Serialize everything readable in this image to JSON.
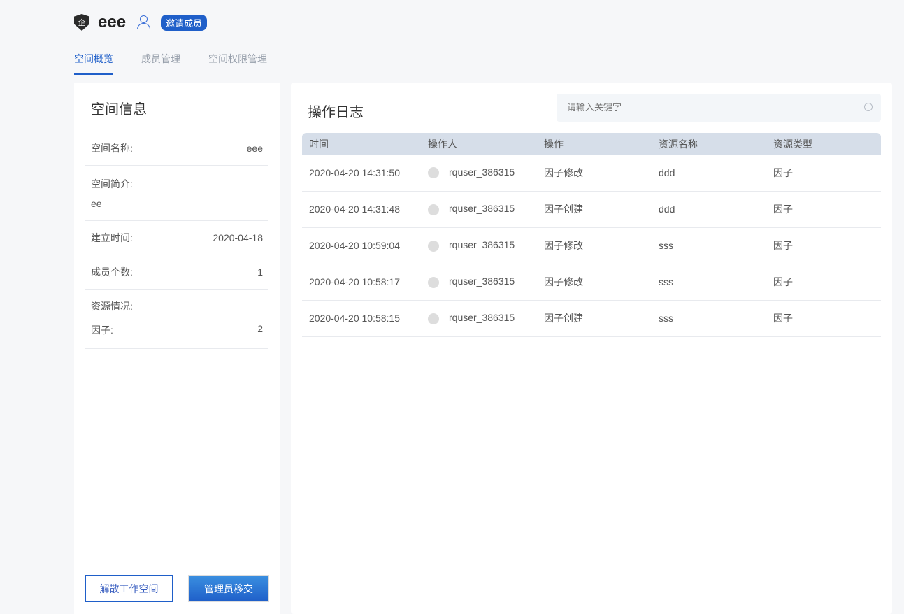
{
  "header": {
    "badge": "企",
    "title": "eee",
    "invite": "邀请成员"
  },
  "tabs": [
    "空间概览",
    "成员管理",
    "空间权限管理"
  ],
  "info": {
    "title": "空间信息",
    "name_label": "空间名称:",
    "name": "eee",
    "desc_label": "空间简介:",
    "desc": "ee",
    "created_label": "建立时间:",
    "created": "2020-04-18",
    "members_label": "成员个数:",
    "members": "1",
    "resources_label": "资源情况:",
    "factor_label": "因子:",
    "factor": "2",
    "dissolve": "解散工作空间",
    "transfer": "管理员移交"
  },
  "log": {
    "title": "操作日志",
    "placeholder": "请输入关键字",
    "headers": [
      "时间",
      "操作人",
      "操作",
      "资源名称",
      "资源类型"
    ],
    "rows": [
      [
        "2020-04-20 14:31:50",
        "rquser_386315",
        "因子修改",
        "ddd",
        "因子"
      ],
      [
        "2020-04-20 14:31:48",
        "rquser_386315",
        "因子创建",
        "ddd",
        "因子"
      ],
      [
        "2020-04-20 10:59:04",
        "rquser_386315",
        "因子修改",
        "sss",
        "因子"
      ],
      [
        "2020-04-20 10:58:17",
        "rquser_386315",
        "因子修改",
        "sss",
        "因子"
      ],
      [
        "2020-04-20 10:58:15",
        "rquser_386315",
        "因子创建",
        "sss",
        "因子"
      ]
    ]
  }
}
